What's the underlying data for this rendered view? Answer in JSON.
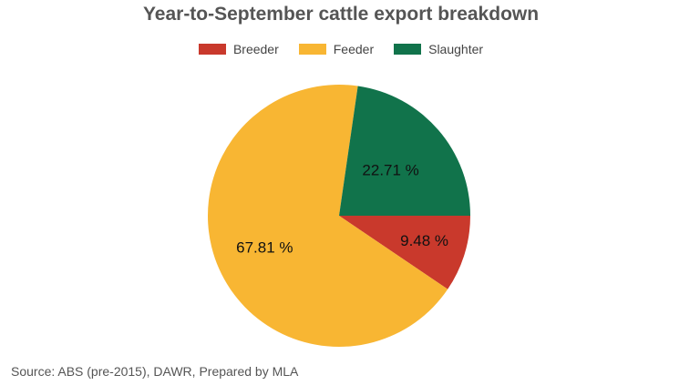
{
  "chart_data": {
    "type": "pie",
    "title": "Year-to-September cattle export breakdown",
    "categories": [
      "Breeder",
      "Feeder",
      "Slaughter"
    ],
    "values": [
      9.48,
      67.81,
      22.71
    ],
    "value_labels": [
      "9.48 %",
      "67.81 %",
      "22.71 %"
    ],
    "colors": [
      "#c9392c",
      "#f8b633",
      "#11734b"
    ],
    "legend_position": "top-center",
    "start_angle_deg": 0,
    "direction": "clockwise"
  },
  "source": "Source: ABS (pre-2015), DAWR, Prepared by MLA"
}
